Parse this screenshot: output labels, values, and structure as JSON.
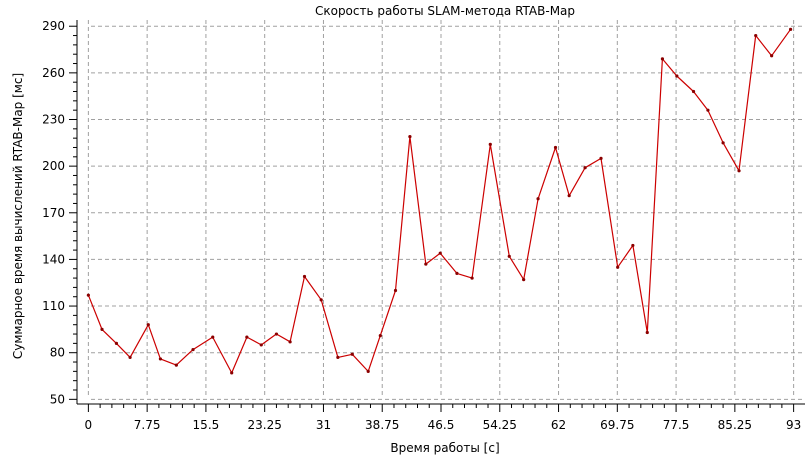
{
  "chart_data": {
    "type": "line",
    "title": "Скорость работы SLAM-метода RTAB-Map",
    "xlabel": "Время работы [с]",
    "ylabel": "Суммарное время вычислений RTAB-Map [мс]",
    "xlim": [
      -1.5,
      94.5
    ],
    "ylim": [
      47,
      294
    ],
    "xticks": [
      "0",
      "7.75",
      "15.5",
      "23.25",
      "31",
      "38.75",
      "46.5",
      "54.25",
      "62",
      "69.75",
      "77.5",
      "85.25",
      "93"
    ],
    "yticks": [
      "50",
      "80",
      "110",
      "140",
      "170",
      "200",
      "230",
      "260",
      "290"
    ],
    "grid": true,
    "colors": {
      "line": "#cc0000",
      "marker": "#8b0000",
      "grid": "#a0a0a0"
    },
    "series": [
      {
        "x": [
          0,
          1.8,
          3.7,
          5.5,
          7.9,
          9.5,
          11.6,
          13.8,
          16.4,
          18.9,
          20.9,
          22.8,
          24.8,
          26.6,
          28.5,
          30.7,
          32.9,
          34.8,
          36.9,
          38.5,
          40.5,
          42.4,
          44.5,
          46.4,
          48.6,
          50.6,
          53.0,
          55.5,
          57.4,
          59.3,
          61.6,
          63.4,
          65.5,
          67.6,
          69.8,
          71.8,
          73.7,
          75.7,
          77.6,
          79.8,
          81.7,
          83.7,
          85.8,
          88.0,
          90.1,
          92.6
        ],
        "y": [
          117,
          95,
          86,
          77,
          98,
          76,
          72,
          82,
          90,
          67,
          90,
          85,
          92,
          87,
          129,
          114,
          77,
          79,
          68,
          91,
          120,
          219,
          137,
          144,
          131,
          128,
          214,
          142,
          127,
          179,
          212,
          181,
          199,
          205,
          135,
          149,
          93,
          269,
          258,
          248,
          236,
          215,
          197,
          284,
          271,
          288
        ]
      }
    ]
  }
}
